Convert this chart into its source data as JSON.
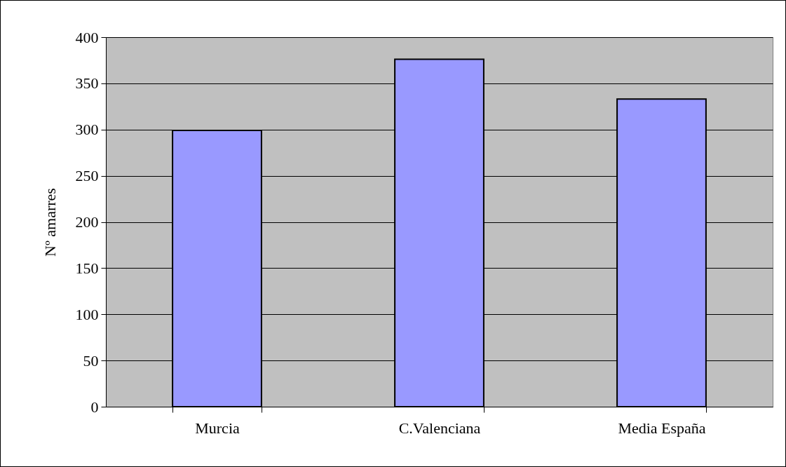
{
  "chart_data": {
    "type": "bar",
    "ylabel": "Nº amarres",
    "categories": [
      "Murcia",
      "C.Valenciana",
      "Media España"
    ],
    "values": [
      299,
      376,
      333
    ],
    "color": "#9999ff",
    "ylim": [
      0,
      400
    ],
    "yticks": [
      0,
      50,
      100,
      150,
      200,
      250,
      300,
      350,
      400
    ],
    "grid": "y"
  }
}
